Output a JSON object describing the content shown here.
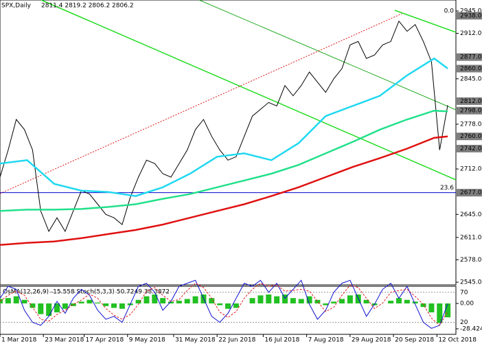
{
  "chart_data": {
    "type": "line",
    "title": "SPX,Daily",
    "ohlc_text": "2811.4 2819.2 2806.2 2806.2",
    "xlim": [
      0,
      168
    ],
    "xticks": [
      {
        "value": 0,
        "label": "1 Mar 2018"
      },
      {
        "value": 16,
        "label": "23 Mar 2018"
      },
      {
        "value": 31,
        "label": "17 Apr 2018"
      },
      {
        "value": 47,
        "label": "9 May 2018"
      },
      {
        "value": 64,
        "label": "31 May 2018"
      },
      {
        "value": 80,
        "label": "22 Jun 2018"
      },
      {
        "value": 97,
        "label": "16 Jul 2018"
      },
      {
        "value": 113,
        "label": "7 Aug 2018"
      },
      {
        "value": 129,
        "label": "29 Aug 2018"
      },
      {
        "value": 145,
        "label": "20 Sep 2018"
      },
      {
        "value": 161,
        "label": "12 Oct 2018"
      }
    ],
    "ylim": [
      2541,
      2961.2
    ],
    "yticks": [
      {
        "value": 2945,
        "label": "2945.0"
      },
      {
        "value": 2912,
        "label": "2912.0"
      },
      {
        "value": 2845,
        "label": "2845.0"
      },
      {
        "value": 2778,
        "label": "2778.0"
      },
      {
        "value": 2712,
        "label": "2712.0"
      },
      {
        "value": 2645,
        "label": "2645.0"
      },
      {
        "value": 2611,
        "label": "2611.0"
      },
      {
        "value": 2578,
        "label": "2578.0"
      },
      {
        "value": 2545,
        "label": "2545.0"
      }
    ],
    "level_color": "#7f7f7f",
    "level_labels": [
      {
        "value": 2938,
        "label": "2938.0"
      },
      {
        "value": 2877,
        "label": "2877.0"
      },
      {
        "value": 2860,
        "label": "2860.0"
      },
      {
        "value": 2812,
        "label": "2812.0"
      },
      {
        "value": 2798,
        "label": "2798.0"
      },
      {
        "value": 2760,
        "label": "2760.0"
      },
      {
        "value": 2742,
        "label": "2742.0"
      },
      {
        "value": 2677,
        "label": "2677.0"
      }
    ],
    "fib_labels": [
      {
        "value": 2938,
        "label": "0.0"
      },
      {
        "value": 2677,
        "label": "23.6"
      }
    ],
    "horizontal_line": {
      "value": 2677,
      "color": "#0000cc"
    },
    "series": [
      {
        "name": "SPX",
        "color": "#000000",
        "x": [
          0,
          3,
          6,
          9,
          12,
          15,
          18,
          21,
          24,
          27,
          30,
          33,
          36,
          39,
          42,
          45,
          48,
          51,
          54,
          57,
          60,
          63,
          66,
          69,
          72,
          75,
          78,
          81,
          84,
          87,
          90,
          93,
          96,
          99,
          102,
          105,
          108,
          111,
          114,
          117,
          120,
          123,
          126,
          129,
          132,
          135,
          138,
          141,
          144,
          147,
          150,
          153,
          156,
          159,
          162,
          165
        ],
        "values": [
          2700,
          2740,
          2785,
          2770,
          2740,
          2650,
          2620,
          2640,
          2620,
          2650,
          2680,
          2675,
          2660,
          2645,
          2640,
          2630,
          2670,
          2700,
          2725,
          2720,
          2705,
          2700,
          2720,
          2740,
          2770,
          2785,
          2760,
          2740,
          2725,
          2730,
          2760,
          2790,
          2800,
          2810,
          2805,
          2835,
          2820,
          2835,
          2855,
          2840,
          2825,
          2845,
          2860,
          2895,
          2900,
          2875,
          2880,
          2895,
          2900,
          2930,
          2915,
          2925,
          2900,
          2870,
          2740,
          2806.2
        ]
      },
      {
        "name": "MA50",
        "color": "#1fd8f0",
        "x": [
          0,
          10,
          20,
          30,
          40,
          50,
          60,
          70,
          80,
          90,
          100,
          110,
          120,
          130,
          140,
          150,
          160,
          165
        ],
        "values": [
          2720,
          2725,
          2690,
          2680,
          2678,
          2672,
          2685,
          2705,
          2730,
          2735,
          2725,
          2750,
          2790,
          2805,
          2820,
          2850,
          2875,
          2860
        ]
      },
      {
        "name": "MA144",
        "color": "#22e08a",
        "x": [
          0,
          10,
          20,
          30,
          40,
          50,
          60,
          70,
          80,
          90,
          100,
          110,
          120,
          130,
          140,
          150,
          160,
          165
        ],
        "values": [
          2650,
          2652,
          2652,
          2653,
          2656,
          2660,
          2668,
          2675,
          2685,
          2695,
          2705,
          2718,
          2735,
          2752,
          2770,
          2785,
          2798,
          2797
        ]
      },
      {
        "name": "MA200",
        "color": "#e01010",
        "x": [
          0,
          10,
          20,
          30,
          40,
          50,
          60,
          70,
          80,
          90,
          100,
          110,
          120,
          130,
          140,
          150,
          160,
          165
        ],
        "values": [
          2600,
          2603,
          2605,
          2610,
          2616,
          2622,
          2630,
          2640,
          2650,
          2660,
          2672,
          2685,
          2700,
          2715,
          2728,
          2742,
          2758,
          2760
        ]
      }
    ],
    "indicator": {
      "header": "OsMA(12,26,9) -15.558 Stoch(5,3,3) 50.7249 38.3872",
      "osma": {
        "color": "#22c022",
        "ylim": [
          -34.6,
          19.2
        ],
        "ticks": [
          {
            "value": 0,
            "label": "0.00"
          },
          {
            "value": -28.4242,
            "label": "-28.4242"
          }
        ],
        "values": [
          5,
          6,
          8,
          4,
          -5,
          -12,
          -14,
          -10,
          -6,
          -3,
          2,
          4,
          1,
          -3,
          -5,
          -6,
          -2,
          4,
          8,
          10,
          6,
          2,
          3,
          5,
          8,
          10,
          6,
          -2,
          -6,
          -5,
          0,
          6,
          9,
          10,
          8,
          10,
          6,
          5,
          8,
          4,
          -2,
          2,
          5,
          9,
          10,
          4,
          -2,
          0,
          3,
          6,
          4,
          2,
          -4,
          -10,
          -22,
          -15.558
        ]
      },
      "stoch": {
        "ylim": [
          0,
          80
        ],
        "ticks": [
          70,
          20
        ],
        "main": {
          "color": "#1010d0",
          "values": [
            60,
            80,
            75,
            40,
            20,
            15,
            30,
            55,
            35,
            60,
            75,
            65,
            40,
            25,
            30,
            20,
            50,
            80,
            85,
            70,
            40,
            55,
            80,
            85,
            90,
            60,
            30,
            20,
            35,
            60,
            85,
            80,
            90,
            70,
            85,
            60,
            75,
            90,
            50,
            25,
            40,
            70,
            85,
            90,
            60,
            30,
            50,
            75,
            85,
            60,
            80,
            50,
            20,
            10,
            15,
            50.7249
          ]
        },
        "signal": {
          "color": "#e02020",
          "values": [
            55,
            65,
            72,
            65,
            45,
            25,
            22,
            33,
            40,
            50,
            57,
            67,
            60,
            43,
            32,
            25,
            33,
            50,
            72,
            78,
            65,
            55,
            58,
            73,
            85,
            78,
            60,
            37,
            28,
            38,
            60,
            75,
            85,
            80,
            82,
            72,
            73,
            75,
            72,
            55,
            38,
            45,
            65,
            82,
            78,
            60,
            43,
            52,
            70,
            73,
            75,
            63,
            50,
            27,
            15,
            38.3872
          ]
        }
      }
    }
  }
}
